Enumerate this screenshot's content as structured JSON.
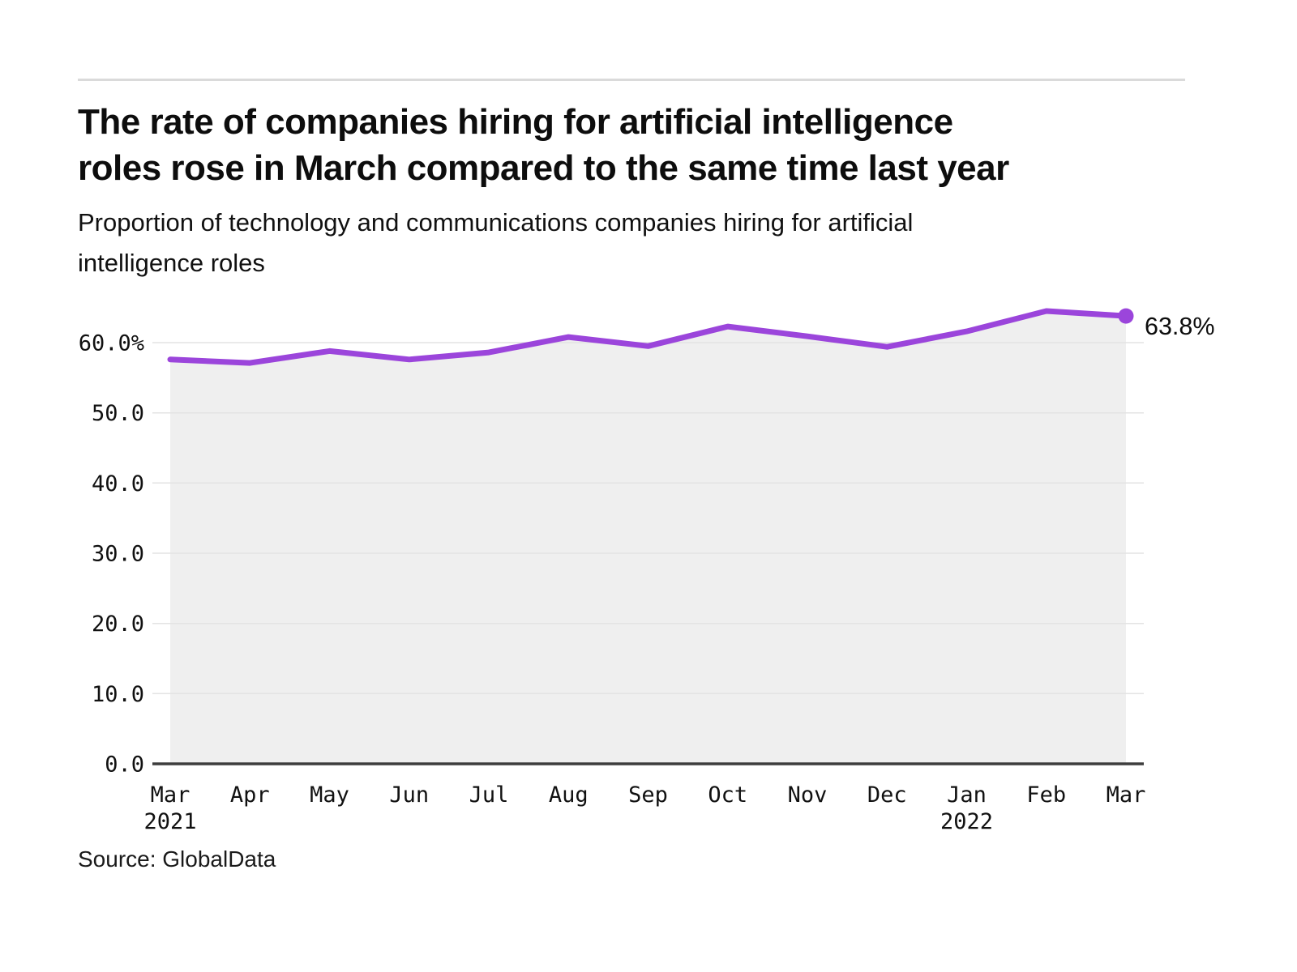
{
  "header": {
    "title_lines": [
      "The rate of companies hiring for artificial intelligence",
      "roles rose in March compared to the same time last year"
    ],
    "subtitle_lines": [
      "Proportion of technology and communications companies hiring for artificial",
      "intelligence roles"
    ]
  },
  "footer": {
    "source": "Source: GlobalData"
  },
  "chart_data": {
    "type": "line",
    "title": "The rate of companies hiring for artificial intelligence roles rose in March compared to the same time last year",
    "subtitle": "Proportion of technology and communications companies hiring for artificial intelligence roles",
    "unit": "%",
    "categories": [
      "Mar",
      "Apr",
      "May",
      "Jun",
      "Jul",
      "Aug",
      "Sep",
      "Oct",
      "Nov",
      "Dec",
      "Jan",
      "Feb",
      "Mar"
    ],
    "category_years": {
      "0": "2021",
      "10": "2022"
    },
    "values": [
      57.6,
      57.1,
      58.8,
      57.6,
      58.6,
      60.8,
      59.5,
      62.3,
      60.9,
      59.4,
      61.6,
      64.5,
      63.8
    ],
    "series_name": "Proportion of technology and communications companies hiring for artificial intelligence roles",
    "last_value_label": "63.8%",
    "y_ticks": [
      {
        "value": 0,
        "label": "0.0"
      },
      {
        "value": 10,
        "label": "10.0"
      },
      {
        "value": 20,
        "label": "20.0"
      },
      {
        "value": 30,
        "label": "30.0"
      },
      {
        "value": 40,
        "label": "40.0"
      },
      {
        "value": 50,
        "label": "50.0"
      },
      {
        "value": 60,
        "label": "60.0%"
      }
    ],
    "ylim": [
      0,
      67.8
    ],
    "grid": "horizontal",
    "legend": "none",
    "source": "Source: GlobalData",
    "colors": {
      "line": "#9B45DB",
      "marker": "#9B45DB",
      "area": "#EFEFEF",
      "gridline": "#E3E3E3",
      "axis": "#3D3D3D",
      "text": "#111111"
    }
  }
}
